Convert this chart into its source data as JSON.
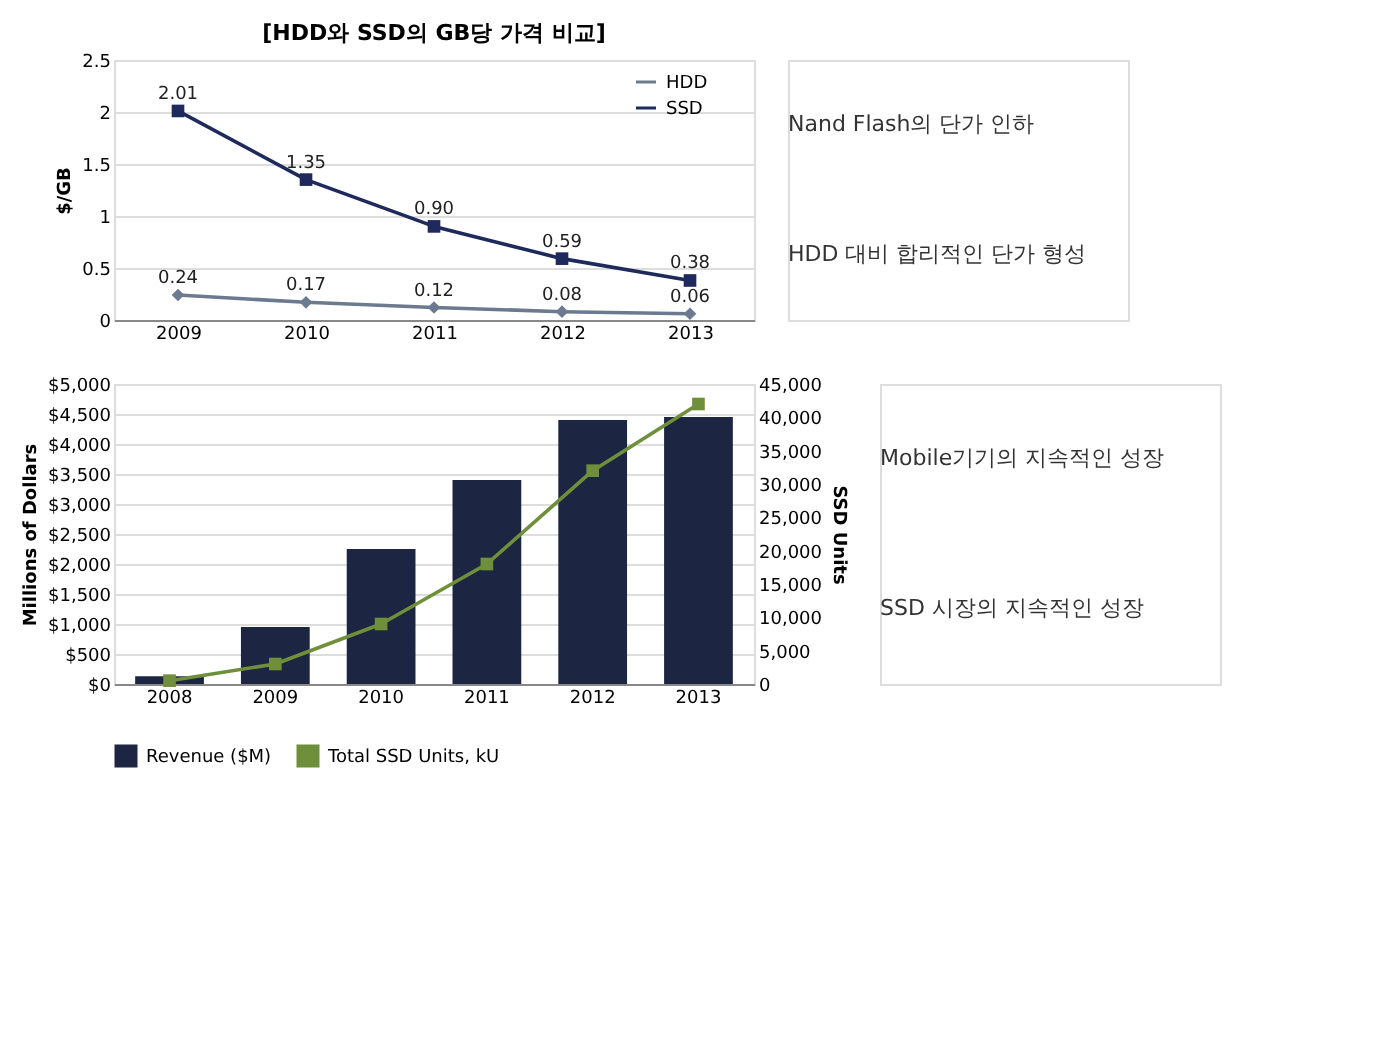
{
  "chart_data": [
    {
      "type": "line",
      "title": "[HDD와 SSD의 GB당 가격 비교]",
      "ylabel": "$/GB",
      "categories": [
        "2009",
        "2010",
        "2011",
        "2012",
        "2013"
      ],
      "series": [
        {
          "name": "HDD",
          "color": "#6b7a8f",
          "marker": "diamond",
          "values": [
            0.24,
            0.17,
            0.12,
            0.08,
            0.06
          ],
          "value_labels": [
            "0.24",
            "0.17",
            "0.12",
            "0.08",
            "0.06"
          ]
        },
        {
          "name": "SSD",
          "color": "#1f2a5c",
          "marker": "square",
          "values": [
            2.01,
            1.35,
            0.9,
            0.59,
            0.38
          ],
          "value_labels": [
            "2.01",
            "1.35",
            "0.90",
            "0.59",
            "0.38"
          ]
        }
      ],
      "ylim": [
        0,
        2.5
      ],
      "yticks": [
        0,
        0.5,
        1,
        1.5,
        2,
        2.5
      ],
      "grid": "y",
      "legend": "top right",
      "annotations": [
        "Nand Flash의 단가 인하",
        "HDD 대비 합리적인 단가 형성"
      ]
    },
    {
      "type": "bar",
      "ylabel": "Millions of Dollars",
      "y2label": "SSD Units",
      "categories": [
        "2008",
        "2009",
        "2010",
        "2011",
        "2012",
        "2013"
      ],
      "series": [
        {
          "name": "Revenue ($M)",
          "type": "bar",
          "color": "#1c2541",
          "values": [
            130,
            950,
            2250,
            3400,
            4400,
            4450
          ]
        },
        {
          "name": "Total SSD Units, kU",
          "type": "line",
          "axis": "y2",
          "marker": "square",
          "color": "#6f8f3a",
          "values": [
            500,
            3000,
            9000,
            18000,
            32000,
            42000
          ]
        }
      ],
      "ylim": [
        0,
        5000
      ],
      "yticks": [
        {
          "value": 0,
          "label": "$0"
        },
        {
          "value": 500,
          "label": "$500"
        },
        {
          "value": 1000,
          "label": "$1,000"
        },
        {
          "value": 1500,
          "label": "$1,500"
        },
        {
          "value": 2000,
          "label": "$2,000"
        },
        {
          "value": 2500,
          "label": "$2,500"
        },
        {
          "value": 3000,
          "label": "$3,000"
        },
        {
          "value": 3500,
          "label": "$3,500"
        },
        {
          "value": 4000,
          "label": "$4,000"
        },
        {
          "value": 4500,
          "label": "$4,500"
        },
        {
          "value": 5000,
          "label": "$5,000"
        }
      ],
      "y2lim": [
        0,
        45000
      ],
      "y2ticks": [
        0,
        {
          "value": 5000,
          "label": "5,000"
        },
        {
          "value": 10000,
          "label": "10,000"
        },
        {
          "value": 15000,
          "label": "15,000"
        },
        {
          "value": 20000,
          "label": "20,000"
        },
        {
          "value": 25000,
          "label": "25,000"
        },
        {
          "value": 30000,
          "label": "30,000"
        },
        {
          "value": 35000,
          "label": "35,000"
        },
        {
          "value": 40000,
          "label": "40,000"
        },
        {
          "value": 45000,
          "label": "45,000"
        }
      ],
      "grid": "y",
      "legend": "bottom",
      "annotations": [
        "Mobile기기의 지속적인 성장",
        "SSD 시장의 지속적인 성장"
      ]
    }
  ]
}
